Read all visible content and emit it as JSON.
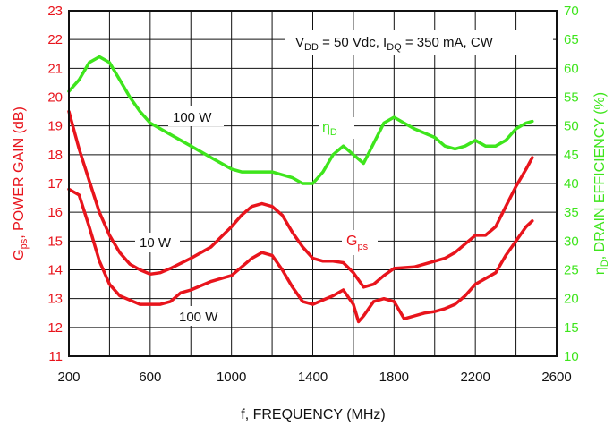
{
  "chart_data": {
    "type": "line",
    "title": "",
    "xlabel": "f, FREQUENCY (MHz)",
    "ylabel_left": {
      "main": "G",
      "sub": "ps",
      "rest": ", POWER GAIN (dB)"
    },
    "ylabel_right": {
      "main": "η",
      "sub": "D",
      "rest": ", DRAIN EFFICIENCY (%)"
    },
    "xlim": [
      200,
      2600
    ],
    "ylim_left": [
      11,
      23
    ],
    "ylim_right": [
      10,
      70
    ],
    "grid": true,
    "colors": {
      "gain": "#e8141c",
      "efficiency": "#3ee51c",
      "axis": "#111111"
    },
    "x_ticks": [
      "200",
      "600",
      "1000",
      "1400",
      "1800",
      "2200",
      "2600"
    ],
    "y_left_ticks": [
      "11",
      "12",
      "13",
      "14",
      "15",
      "16",
      "17",
      "18",
      "19",
      "20",
      "21",
      "22",
      "23"
    ],
    "y_right_ticks": [
      "10",
      "15",
      "20",
      "25",
      "30",
      "35",
      "40",
      "45",
      "50",
      "55",
      "60",
      "65",
      "70"
    ],
    "conditions": {
      "v": "V",
      "v_sub": "DD",
      "v_rest": " = 50 Vdc, I",
      "i_sub": "DQ",
      "i_rest": " = 350 mA, CW"
    },
    "annotations": {
      "eff_100w": "100 W",
      "eta_label": "η",
      "eta_sub": "D",
      "gain_10w": "10 W",
      "gain_100w": "100 W",
      "gps_label": "G",
      "gps_sub": "ps"
    },
    "series": [
      {
        "name": "100 W",
        "axis": "right",
        "color": "#3ee51c",
        "x": [
          200,
          250,
          300,
          350,
          400,
          450,
          500,
          550,
          600,
          700,
          800,
          900,
          1000,
          1050,
          1100,
          1200,
          1250,
          1300,
          1350,
          1400,
          1450,
          1500,
          1550,
          1600,
          1650,
          1700,
          1750,
          1800,
          1900,
          2000,
          2050,
          2100,
          2150,
          2200,
          2250,
          2300,
          2350,
          2400,
          2450,
          2480
        ],
        "y": [
          56,
          58,
          61,
          62,
          61,
          58,
          55,
          52.5,
          50.5,
          48.5,
          46.5,
          44.5,
          42.5,
          42,
          42,
          42,
          41.5,
          41,
          40,
          40,
          42,
          45,
          46.5,
          45,
          43.5,
          47,
          50.5,
          51.5,
          49.5,
          48,
          46.5,
          46,
          46.5,
          47.5,
          46.5,
          46.5,
          47.5,
          49.5,
          50.5,
          50.8
        ]
      },
      {
        "name": "10 W",
        "axis": "left",
        "color": "#e8141c",
        "x": [
          200,
          250,
          300,
          350,
          400,
          450,
          500,
          550,
          600,
          650,
          700,
          800,
          900,
          1000,
          1050,
          1100,
          1150,
          1200,
          1250,
          1300,
          1350,
          1400,
          1450,
          1500,
          1550,
          1600,
          1650,
          1700,
          1750,
          1800,
          1900,
          2000,
          2050,
          2100,
          2150,
          2200,
          2250,
          2300,
          2350,
          2400,
          2450,
          2480
        ],
        "y": [
          19.5,
          18.2,
          17.1,
          16.0,
          15.2,
          14.6,
          14.2,
          14.0,
          13.85,
          13.9,
          14.05,
          14.4,
          14.8,
          15.5,
          15.9,
          16.2,
          16.3,
          16.2,
          15.9,
          15.3,
          14.8,
          14.4,
          14.3,
          14.3,
          14.25,
          13.9,
          13.4,
          13.5,
          13.8,
          14.05,
          14.1,
          14.3,
          14.4,
          14.6,
          14.9,
          15.2,
          15.2,
          15.5,
          16.2,
          16.9,
          17.5,
          17.9
        ]
      },
      {
        "name": "100 W",
        "axis": "left",
        "color": "#e8141c",
        "x": [
          200,
          250,
          300,
          350,
          400,
          450,
          500,
          550,
          600,
          650,
          700,
          750,
          800,
          900,
          1000,
          1050,
          1100,
          1150,
          1200,
          1250,
          1300,
          1350,
          1400,
          1450,
          1500,
          1550,
          1600,
          1625,
          1650,
          1700,
          1750,
          1800,
          1850,
          1900,
          1950,
          2000,
          2050,
          2100,
          2150,
          2200,
          2250,
          2300,
          2350,
          2400,
          2450,
          2480
        ],
        "y": [
          16.8,
          16.6,
          15.5,
          14.3,
          13.5,
          13.1,
          12.95,
          12.8,
          12.8,
          12.8,
          12.9,
          13.2,
          13.3,
          13.6,
          13.8,
          14.1,
          14.4,
          14.6,
          14.5,
          14.0,
          13.4,
          12.9,
          12.8,
          12.95,
          13.1,
          13.3,
          12.8,
          12.2,
          12.4,
          12.9,
          13.0,
          12.9,
          12.3,
          12.4,
          12.5,
          12.55,
          12.65,
          12.8,
          13.1,
          13.5,
          13.7,
          13.9,
          14.5,
          15.0,
          15.5,
          15.7
        ]
      }
    ]
  }
}
